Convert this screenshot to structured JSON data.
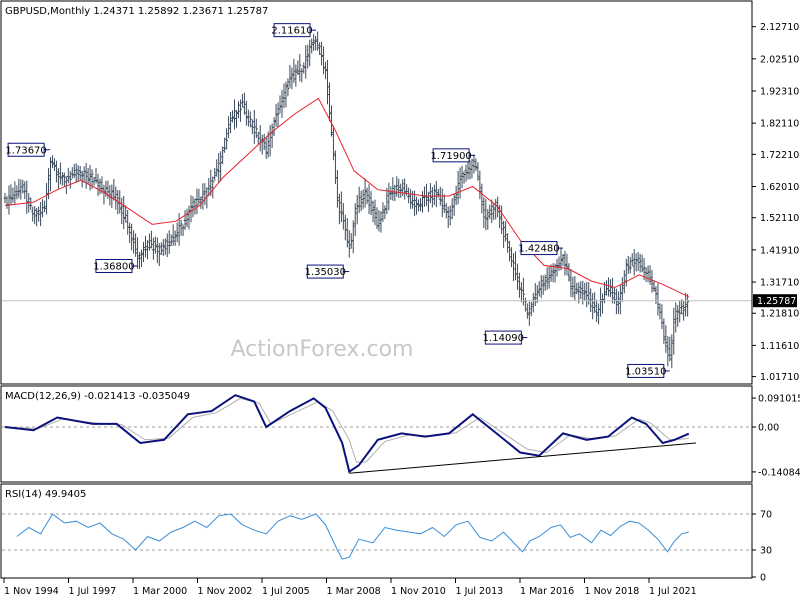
{
  "colors": {
    "bar": "#3b4a5a",
    "ma": "#e8202a",
    "macd": "#0c127c",
    "signal": "#b0b0b0",
    "rsi": "#3b8fd8",
    "label_border": "#0c127c",
    "grid_dashed": "#a0a0a0",
    "watermark": "#c8c8c8",
    "price_line": "#c0c0c0",
    "tag_bg": "#000000",
    "tag_fg": "#ffffff"
  },
  "chart_data": [
    {
      "type": "candlestick",
      "title": "GBPUSD,Monthly  1.24371 1.25892 1.23671 1.25787",
      "symbol": "GBPUSD",
      "timeframe": "Monthly",
      "ohlc": {
        "open": 1.24371,
        "high": 1.25892,
        "low": 1.23671,
        "close": 1.25787
      },
      "x_range": [
        1994.8,
        2022.9
      ],
      "y_range": [
        1.0,
        2.18
      ],
      "y_ticks": [
        "2.12710",
        "2.02510",
        "1.92310",
        "1.82110",
        "1.72210",
        "1.62010",
        "1.52110",
        "1.41910",
        "1.31710",
        "1.21810",
        "1.11610",
        "1.01710"
      ],
      "current_price": "1.25787",
      "annotations": [
        {
          "label": "1.73670",
          "x": 1996.7,
          "y": 1.7367
        },
        {
          "label": "1.36800",
          "x": 2000.4,
          "y": 1.368
        },
        {
          "label": "2.11610",
          "x": 2007.9,
          "y": 2.1161
        },
        {
          "label": "1.35030",
          "x": 2009.3,
          "y": 1.3503
        },
        {
          "label": "1.71900",
          "x": 2014.6,
          "y": 1.719
        },
        {
          "label": "1.14090",
          "x": 2016.8,
          "y": 1.1409
        },
        {
          "label": "1.42480",
          "x": 2018.3,
          "y": 1.4248
        },
        {
          "label": "1.03510",
          "x": 2022.8,
          "y": 1.0351
        }
      ],
      "price_path": [
        [
          1994.8,
          1.57
        ],
        [
          1995.5,
          1.62
        ],
        [
          1996.0,
          1.53
        ],
        [
          1996.5,
          1.55
        ],
        [
          1996.7,
          1.71
        ],
        [
          1997.2,
          1.64
        ],
        [
          1997.8,
          1.66
        ],
        [
          1998.5,
          1.65
        ],
        [
          1999.0,
          1.61
        ],
        [
          1999.5,
          1.58
        ],
        [
          2000.0,
          1.5
        ],
        [
          2000.4,
          1.39
        ],
        [
          2000.8,
          1.44
        ],
        [
          2001.3,
          1.42
        ],
        [
          2001.8,
          1.45
        ],
        [
          2002.3,
          1.5
        ],
        [
          2002.8,
          1.57
        ],
        [
          2003.3,
          1.6
        ],
        [
          2003.8,
          1.68
        ],
        [
          2004.3,
          1.83
        ],
        [
          2004.8,
          1.88
        ],
        [
          2005.3,
          1.8
        ],
        [
          2005.8,
          1.74
        ],
        [
          2006.3,
          1.86
        ],
        [
          2006.8,
          1.96
        ],
        [
          2007.3,
          2.0
        ],
        [
          2007.9,
          2.09
        ],
        [
          2008.3,
          1.99
        ],
        [
          2008.8,
          1.58
        ],
        [
          2009.3,
          1.42
        ],
        [
          2009.6,
          1.56
        ],
        [
          2010.0,
          1.6
        ],
        [
          2010.5,
          1.5
        ],
        [
          2011.0,
          1.6
        ],
        [
          2011.5,
          1.62
        ],
        [
          2012.0,
          1.56
        ],
        [
          2012.5,
          1.58
        ],
        [
          2013.0,
          1.6
        ],
        [
          2013.5,
          1.52
        ],
        [
          2014.0,
          1.65
        ],
        [
          2014.6,
          1.7
        ],
        [
          2015.0,
          1.52
        ],
        [
          2015.5,
          1.56
        ],
        [
          2016.0,
          1.42
        ],
        [
          2016.5,
          1.3
        ],
        [
          2016.8,
          1.22
        ],
        [
          2017.3,
          1.3
        ],
        [
          2017.8,
          1.34
        ],
        [
          2018.3,
          1.4
        ],
        [
          2018.7,
          1.29
        ],
        [
          2019.3,
          1.28
        ],
        [
          2019.7,
          1.22
        ],
        [
          2020.2,
          1.3
        ],
        [
          2020.6,
          1.25
        ],
        [
          2021.0,
          1.37
        ],
        [
          2021.5,
          1.38
        ],
        [
          2021.9,
          1.34
        ],
        [
          2022.3,
          1.25
        ],
        [
          2022.6,
          1.12
        ],
        [
          2022.8,
          1.07
        ],
        [
          2023.0,
          1.21
        ],
        [
          2023.3,
          1.23
        ],
        [
          2023.6,
          1.2579
        ]
      ],
      "moving_average": [
        [
          1994.8,
          1.56
        ],
        [
          1996.0,
          1.57
        ],
        [
          1997.0,
          1.61
        ],
        [
          1998.0,
          1.64
        ],
        [
          1999.0,
          1.6
        ],
        [
          2000.0,
          1.55
        ],
        [
          2001.0,
          1.5
        ],
        [
          2002.0,
          1.51
        ],
        [
          2003.0,
          1.56
        ],
        [
          2004.0,
          1.65
        ],
        [
          2005.0,
          1.72
        ],
        [
          2006.0,
          1.79
        ],
        [
          2007.0,
          1.85
        ],
        [
          2008.0,
          1.9
        ],
        [
          2008.7,
          1.8
        ],
        [
          2009.5,
          1.67
        ],
        [
          2010.5,
          1.61
        ],
        [
          2011.5,
          1.6
        ],
        [
          2012.5,
          1.59
        ],
        [
          2013.5,
          1.59
        ],
        [
          2014.5,
          1.62
        ],
        [
          2015.5,
          1.56
        ],
        [
          2016.5,
          1.45
        ],
        [
          2017.5,
          1.37
        ],
        [
          2018.5,
          1.36
        ],
        [
          2019.5,
          1.32
        ],
        [
          2020.5,
          1.3
        ],
        [
          2021.5,
          1.34
        ],
        [
          2022.5,
          1.31
        ],
        [
          2023.6,
          1.27
        ]
      ]
    },
    {
      "type": "line",
      "title": "MACD(12,26,9) -0.021413 -0.035049",
      "indicator": "MACD(12,26,9)",
      "values_label": "-0.021413 -0.035049",
      "y_range": [
        -0.16,
        0.11
      ],
      "y_ticks": [
        "0.091015",
        "0.00",
        "-0.140843"
      ],
      "macd": [
        [
          1994.8,
          0.0
        ],
        [
          1996.0,
          -0.01
        ],
        [
          1997.0,
          0.03
        ],
        [
          1998.5,
          0.01
        ],
        [
          1999.5,
          0.01
        ],
        [
          2000.5,
          -0.05
        ],
        [
          2001.5,
          -0.04
        ],
        [
          2002.5,
          0.04
        ],
        [
          2003.5,
          0.05
        ],
        [
          2004.5,
          0.1
        ],
        [
          2005.3,
          0.08
        ],
        [
          2005.8,
          0.0
        ],
        [
          2006.8,
          0.05
        ],
        [
          2007.8,
          0.09
        ],
        [
          2008.3,
          0.06
        ],
        [
          2009.0,
          -0.05
        ],
        [
          2009.3,
          -0.14
        ],
        [
          2009.7,
          -0.12
        ],
        [
          2010.5,
          -0.04
        ],
        [
          2011.5,
          -0.02
        ],
        [
          2012.5,
          -0.03
        ],
        [
          2013.5,
          -0.02
        ],
        [
          2014.5,
          0.04
        ],
        [
          2015.5,
          -0.02
        ],
        [
          2016.5,
          -0.08
        ],
        [
          2017.3,
          -0.09
        ],
        [
          2018.3,
          -0.02
        ],
        [
          2019.3,
          -0.04
        ],
        [
          2020.2,
          -0.03
        ],
        [
          2021.2,
          0.03
        ],
        [
          2021.8,
          0.01
        ],
        [
          2022.5,
          -0.05
        ],
        [
          2023.0,
          -0.04
        ],
        [
          2023.6,
          -0.021
        ]
      ],
      "signal": [
        [
          1994.8,
          0.0
        ],
        [
          1996.2,
          -0.005
        ],
        [
          1997.2,
          0.025
        ],
        [
          1998.7,
          0.012
        ],
        [
          1999.7,
          0.008
        ],
        [
          2000.7,
          -0.04
        ],
        [
          2001.7,
          -0.035
        ],
        [
          2002.7,
          0.03
        ],
        [
          2003.7,
          0.045
        ],
        [
          2004.7,
          0.09
        ],
        [
          2005.5,
          0.075
        ],
        [
          2006.0,
          0.01
        ],
        [
          2007.0,
          0.045
        ],
        [
          2008.0,
          0.08
        ],
        [
          2008.6,
          0.05
        ],
        [
          2009.3,
          -0.04
        ],
        [
          2009.6,
          -0.11
        ],
        [
          2010.0,
          -0.11
        ],
        [
          2010.8,
          -0.045
        ],
        [
          2011.8,
          -0.025
        ],
        [
          2012.8,
          -0.028
        ],
        [
          2013.8,
          -0.018
        ],
        [
          2014.8,
          0.03
        ],
        [
          2015.8,
          -0.02
        ],
        [
          2016.8,
          -0.07
        ],
        [
          2017.6,
          -0.08
        ],
        [
          2018.6,
          -0.025
        ],
        [
          2019.6,
          -0.038
        ],
        [
          2020.5,
          -0.028
        ],
        [
          2021.5,
          0.025
        ],
        [
          2022.0,
          0.012
        ],
        [
          2022.8,
          -0.04
        ],
        [
          2023.3,
          -0.038
        ],
        [
          2023.6,
          -0.035
        ]
      ],
      "trendline": [
        [
          2009.3,
          -0.145
        ],
        [
          2023.9,
          -0.05
        ]
      ]
    },
    {
      "type": "line",
      "title": "RSI(14) 49.9405",
      "indicator": "RSI(14)",
      "value_label": "49.9405",
      "y_range": [
        0,
        100
      ],
      "y_ticks": [
        "70",
        "30",
        "0"
      ],
      "levels": [
        70,
        30
      ],
      "rsi": [
        [
          1995.3,
          45
        ],
        [
          1995.8,
          55
        ],
        [
          1996.3,
          48
        ],
        [
          1996.8,
          70
        ],
        [
          1997.3,
          60
        ],
        [
          1997.8,
          62
        ],
        [
          1998.3,
          55
        ],
        [
          1998.8,
          60
        ],
        [
          1999.3,
          48
        ],
        [
          1999.8,
          42
        ],
        [
          2000.3,
          30
        ],
        [
          2000.8,
          45
        ],
        [
          2001.3,
          40
        ],
        [
          2001.8,
          50
        ],
        [
          2002.3,
          55
        ],
        [
          2002.8,
          62
        ],
        [
          2003.3,
          55
        ],
        [
          2003.8,
          68
        ],
        [
          2004.3,
          70
        ],
        [
          2004.8,
          58
        ],
        [
          2005.3,
          52
        ],
        [
          2005.8,
          48
        ],
        [
          2006.3,
          62
        ],
        [
          2006.8,
          68
        ],
        [
          2007.3,
          64
        ],
        [
          2007.9,
          70
        ],
        [
          2008.3,
          58
        ],
        [
          2008.8,
          30
        ],
        [
          2009.0,
          20
        ],
        [
          2009.3,
          22
        ],
        [
          2009.7,
          42
        ],
        [
          2010.3,
          38
        ],
        [
          2010.8,
          55
        ],
        [
          2011.3,
          52
        ],
        [
          2011.8,
          50
        ],
        [
          2012.3,
          48
        ],
        [
          2012.8,
          55
        ],
        [
          2013.3,
          45
        ],
        [
          2013.8,
          58
        ],
        [
          2014.3,
          62
        ],
        [
          2014.8,
          44
        ],
        [
          2015.3,
          40
        ],
        [
          2015.8,
          50
        ],
        [
          2016.3,
          36
        ],
        [
          2016.6,
          28
        ],
        [
          2016.9,
          40
        ],
        [
          2017.3,
          45
        ],
        [
          2017.8,
          55
        ],
        [
          2018.2,
          58
        ],
        [
          2018.6,
          44
        ],
        [
          2019.0,
          48
        ],
        [
          2019.5,
          38
        ],
        [
          2019.9,
          52
        ],
        [
          2020.3,
          46
        ],
        [
          2020.7,
          56
        ],
        [
          2021.1,
          62
        ],
        [
          2021.5,
          60
        ],
        [
          2021.9,
          52
        ],
        [
          2022.3,
          42
        ],
        [
          2022.7,
          28
        ],
        [
          2023.0,
          40
        ],
        [
          2023.3,
          48
        ],
        [
          2023.6,
          49.94
        ]
      ]
    }
  ],
  "x_axis": {
    "tick_labels": [
      "1 Nov 1994",
      "1 Jul 1997",
      "1 Mar 2000",
      "1 Nov 2002",
      "1 Jul 2005",
      "1 Mar 2008",
      "1 Nov 2010",
      "1 Jul 2013",
      "1 Mar 2016",
      "1 Nov 2018",
      "1 Jul 2021"
    ]
  },
  "watermark": "ActionForex.com"
}
